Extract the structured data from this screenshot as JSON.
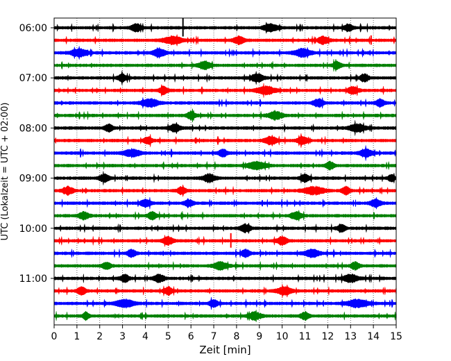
{
  "chart_data": {
    "type": "line",
    "title": "",
    "xlabel": "Zeit  [min]",
    "ylabel": "UTC (Lokalzeit = UTC + 02:00)",
    "xlim": [
      0,
      15
    ],
    "x_ticks": [
      "0",
      "1",
      "2",
      "3",
      "4",
      "5",
      "6",
      "7",
      "8",
      "9",
      "10",
      "11",
      "12",
      "13",
      "14",
      "15"
    ],
    "y_tick_labels": [
      "06:00",
      "07:00",
      "08:00",
      "09:00",
      "10:00",
      "11:00"
    ],
    "grid": "vertical dotted",
    "trace_minutes": 15,
    "start_time": "05:45",
    "series_colors": [
      "#000000",
      "#ff0000",
      "#0000ff",
      "#008000"
    ],
    "traces": [
      {
        "time": "05:45",
        "color": "#000000",
        "bursts": [
          [
            3.6,
            0.5
          ],
          [
            9.5,
            0.7
          ],
          [
            12.9,
            0.4
          ]
        ],
        "spikes": [
          [
            5.65,
            14
          ]
        ]
      },
      {
        "time": "06:00",
        "color": "#ff0000",
        "bursts": [
          [
            5.2,
            0.9
          ],
          [
            8.1,
            0.5
          ],
          [
            11.8,
            0.5
          ]
        ],
        "spikes": [
          [
            13.9,
            7
          ]
        ]
      },
      {
        "time": "06:15",
        "color": "#0000ff",
        "bursts": [
          [
            1.1,
            0.8
          ],
          [
            4.6,
            0.6
          ],
          [
            10.9,
            0.8
          ]
        ],
        "spikes": []
      },
      {
        "time": "06:30",
        "color": "#008000",
        "bursts": [
          [
            6.6,
            0.6
          ],
          [
            12.4,
            0.4
          ]
        ],
        "spikes": []
      },
      {
        "time": "06:45",
        "color": "#000000",
        "bursts": [
          [
            3.0,
            0.4
          ],
          [
            8.9,
            0.6
          ],
          [
            13.6,
            0.4
          ]
        ],
        "spikes": []
      },
      {
        "time": "07:00",
        "color": "#ff0000",
        "bursts": [
          [
            9.3,
            0.9
          ],
          [
            4.8,
            0.4
          ],
          [
            13.1,
            0.5
          ]
        ],
        "spikes": []
      },
      {
        "time": "07:15",
        "color": "#0000ff",
        "bursts": [
          [
            4.2,
            0.8
          ],
          [
            11.6,
            0.5
          ],
          [
            14.3,
            0.4
          ]
        ],
        "spikes": []
      },
      {
        "time": "07:30",
        "color": "#008000",
        "bursts": [
          [
            9.7,
            0.7
          ],
          [
            6.0,
            0.4
          ]
        ],
        "spikes": []
      },
      {
        "time": "07:45",
        "color": "#000000",
        "bursts": [
          [
            5.3,
            0.5
          ],
          [
            13.3,
            0.8
          ],
          [
            2.4,
            0.4
          ]
        ],
        "spikes": []
      },
      {
        "time": "08:00",
        "color": "#ff0000",
        "bursts": [
          [
            9.5,
            0.6
          ],
          [
            10.9,
            0.5
          ],
          [
            4.1,
            0.4
          ]
        ],
        "spikes": []
      },
      {
        "time": "08:15",
        "color": "#0000ff",
        "bursts": [
          [
            3.4,
            0.8
          ],
          [
            13.7,
            0.6
          ],
          [
            7.4,
            0.4
          ]
        ],
        "spikes": []
      },
      {
        "time": "08:30",
        "color": "#008000",
        "bursts": [
          [
            8.9,
            0.9
          ],
          [
            12.1,
            0.4
          ]
        ],
        "spikes": []
      },
      {
        "time": "08:45",
        "color": "#000000",
        "bursts": [
          [
            6.8,
            0.6
          ],
          [
            2.2,
            0.5
          ],
          [
            11.0,
            0.4
          ],
          [
            14.8,
            0.3
          ]
        ],
        "spikes": []
      },
      {
        "time": "09:00",
        "color": "#ff0000",
        "bursts": [
          [
            11.4,
            1.0
          ],
          [
            0.6,
            0.5
          ],
          [
            5.6,
            0.4
          ],
          [
            12.8,
            0.4
          ]
        ],
        "spikes": []
      },
      {
        "time": "09:15",
        "color": "#0000ff",
        "bursts": [
          [
            4.0,
            0.5
          ],
          [
            5.9,
            0.4
          ],
          [
            14.1,
            0.5
          ]
        ],
        "spikes": []
      },
      {
        "time": "09:30",
        "color": "#008000",
        "bursts": [
          [
            1.3,
            0.5
          ],
          [
            4.3,
            0.4
          ],
          [
            10.6,
            0.5
          ]
        ],
        "spikes": []
      },
      {
        "time": "09:45",
        "color": "#000000",
        "bursts": [
          [
            8.4,
            0.5
          ],
          [
            12.6,
            0.4
          ]
        ],
        "spikes": []
      },
      {
        "time": "10:00",
        "color": "#ff0000",
        "bursts": [
          [
            5.0,
            0.5
          ],
          [
            10.0,
            0.5
          ]
        ],
        "spikes": [
          [
            7.75,
            11
          ]
        ]
      },
      {
        "time": "10:15",
        "color": "#0000ff",
        "bursts": [
          [
            11.3,
            0.7
          ],
          [
            3.4,
            0.4
          ],
          [
            8.4,
            0.4
          ]
        ],
        "spikes": []
      },
      {
        "time": "10:30",
        "color": "#008000",
        "bursts": [
          [
            7.3,
            0.7
          ],
          [
            2.3,
            0.4
          ],
          [
            13.2,
            0.4
          ]
        ],
        "spikes": []
      },
      {
        "time": "10:45",
        "color": "#000000",
        "bursts": [
          [
            4.6,
            0.5
          ],
          [
            13.0,
            0.7
          ],
          [
            3.1,
            0.4
          ]
        ],
        "spikes": []
      },
      {
        "time": "11:00",
        "color": "#ff0000",
        "bursts": [
          [
            10.1,
            0.7
          ],
          [
            5.0,
            0.4
          ],
          [
            1.2,
            0.4
          ]
        ],
        "spikes": []
      },
      {
        "time": "11:15",
        "color": "#0000ff",
        "bursts": [
          [
            3.1,
            0.9
          ],
          [
            13.3,
            1.0
          ],
          [
            7.0,
            0.4
          ]
        ],
        "spikes": []
      },
      {
        "time": "11:30",
        "color": "#008000",
        "bursts": [
          [
            8.8,
            0.6
          ],
          [
            1.4,
            0.3
          ],
          [
            11.0,
            0.4
          ]
        ],
        "spikes": []
      }
    ]
  }
}
